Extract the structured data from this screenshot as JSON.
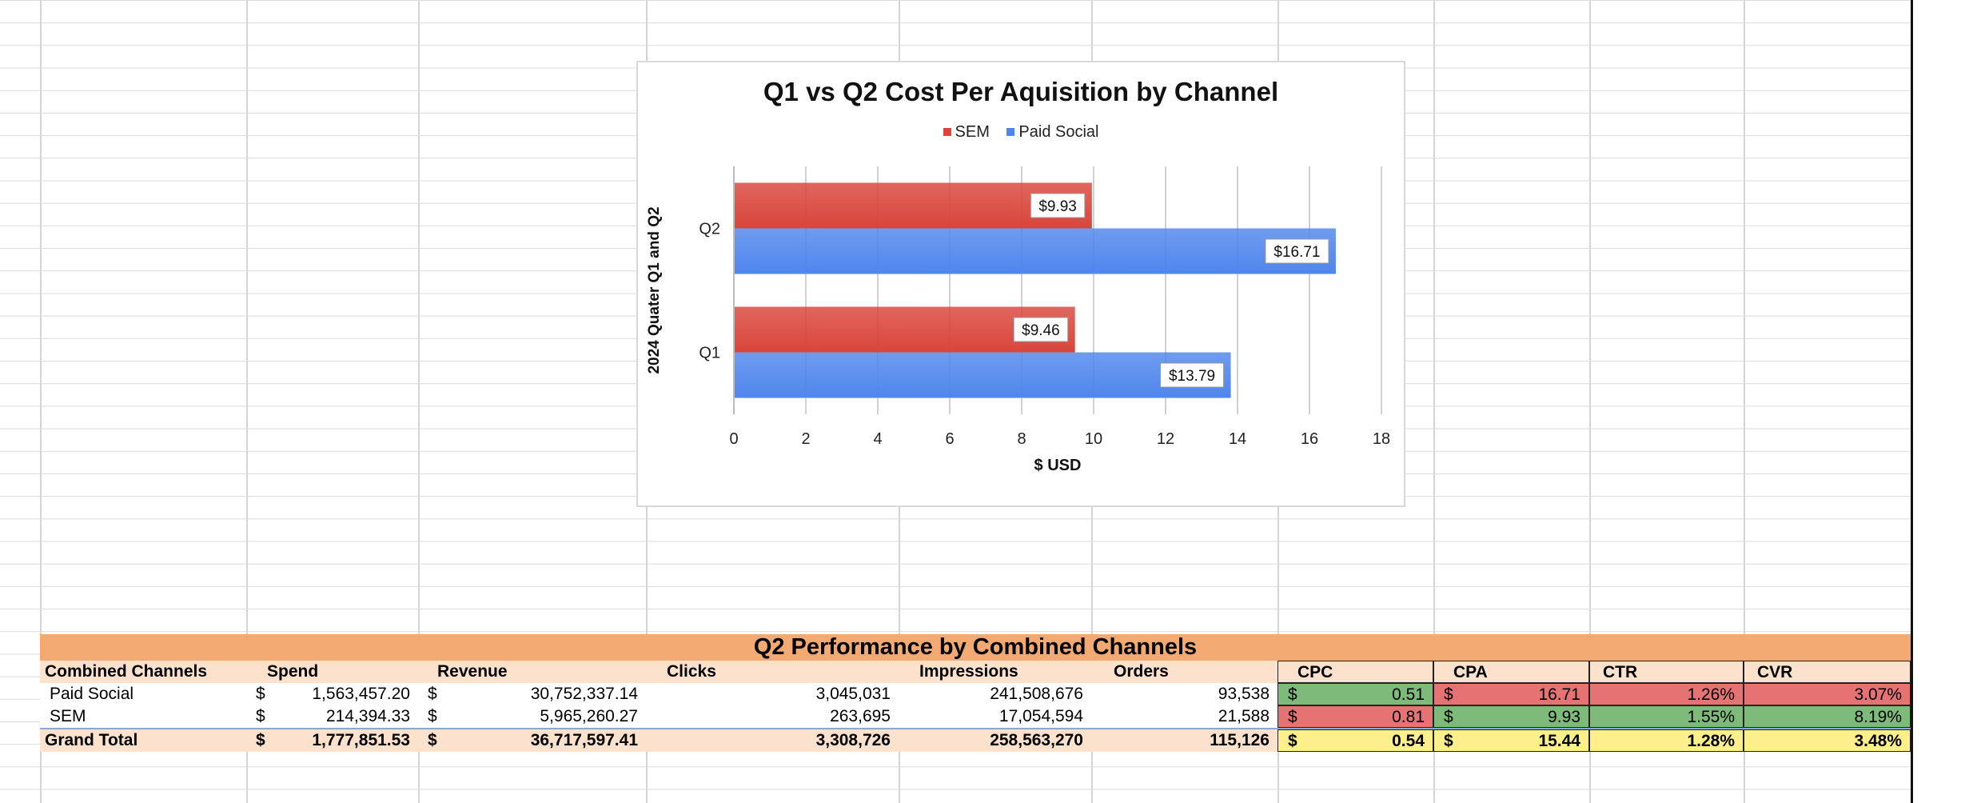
{
  "chart_data": {
    "type": "bar",
    "orientation": "horizontal",
    "title": "Q1 vs Q2 Cost Per Aquisition by Channel",
    "xlabel": "$ USD",
    "ylabel": "2024 Quater Q1 and Q2",
    "categories": [
      "Q1",
      "Q2"
    ],
    "series": [
      {
        "name": "SEM",
        "values": [
          9.46,
          9.93
        ],
        "labels": [
          "$9.46",
          "$9.93"
        ],
        "color": "#d9453a"
      },
      {
        "name": "Paid Social",
        "values": [
          13.79,
          16.71
        ],
        "labels": [
          "$13.79",
          "$16.71"
        ],
        "color": "#4f86ec"
      }
    ],
    "xlim": [
      0,
      18
    ],
    "xticks": [
      "0",
      "2",
      "4",
      "6",
      "8",
      "10",
      "12",
      "14",
      "16",
      "18"
    ],
    "grid": true,
    "legend": "top-center"
  },
  "table": {
    "title": "Q2 Performance by  Combined Channels",
    "headers": {
      "channel": "Combined Channels",
      "spend": "Spend",
      "revenue": "Revenue",
      "clicks": "Clicks",
      "impressions": "Impressions",
      "orders": "Orders",
      "cpc": "CPC",
      "cpa": "CPA",
      "ctr": "CTR",
      "cvr": "CVR"
    },
    "currency_symbol": "$",
    "rows": [
      {
        "channel": "Paid Social",
        "spend": "1,563,457.20",
        "revenue": "30,752,337.14",
        "clicks": "3,045,031",
        "impressions": "241,508,676",
        "orders": "93,538",
        "cpc": "0.51",
        "cpa": "16.71",
        "ctr": "1.26%",
        "cvr": "3.07%"
      },
      {
        "channel": "SEM",
        "spend": "214,394.33",
        "revenue": "5,965,260.27",
        "clicks": "263,695",
        "impressions": "17,054,594",
        "orders": "21,588",
        "cpc": "0.81",
        "cpa": "9.93",
        "ctr": "1.55%",
        "cvr": "8.19%"
      }
    ],
    "total": {
      "channel": "Grand Total",
      "spend": "1,777,851.53",
      "revenue": "36,717,597.41",
      "clicks": "3,308,726",
      "impressions": "258,563,270",
      "orders": "115,126",
      "cpc": "0.54",
      "cpa": "15.44",
      "ctr": "1.28%",
      "cvr": "3.48%"
    },
    "colors": {
      "header_band": "#f2aa72",
      "header_row": "#fce1cc",
      "good": "#7ebb7b",
      "bad": "#e57373",
      "neutral": "#fdf08c"
    }
  }
}
